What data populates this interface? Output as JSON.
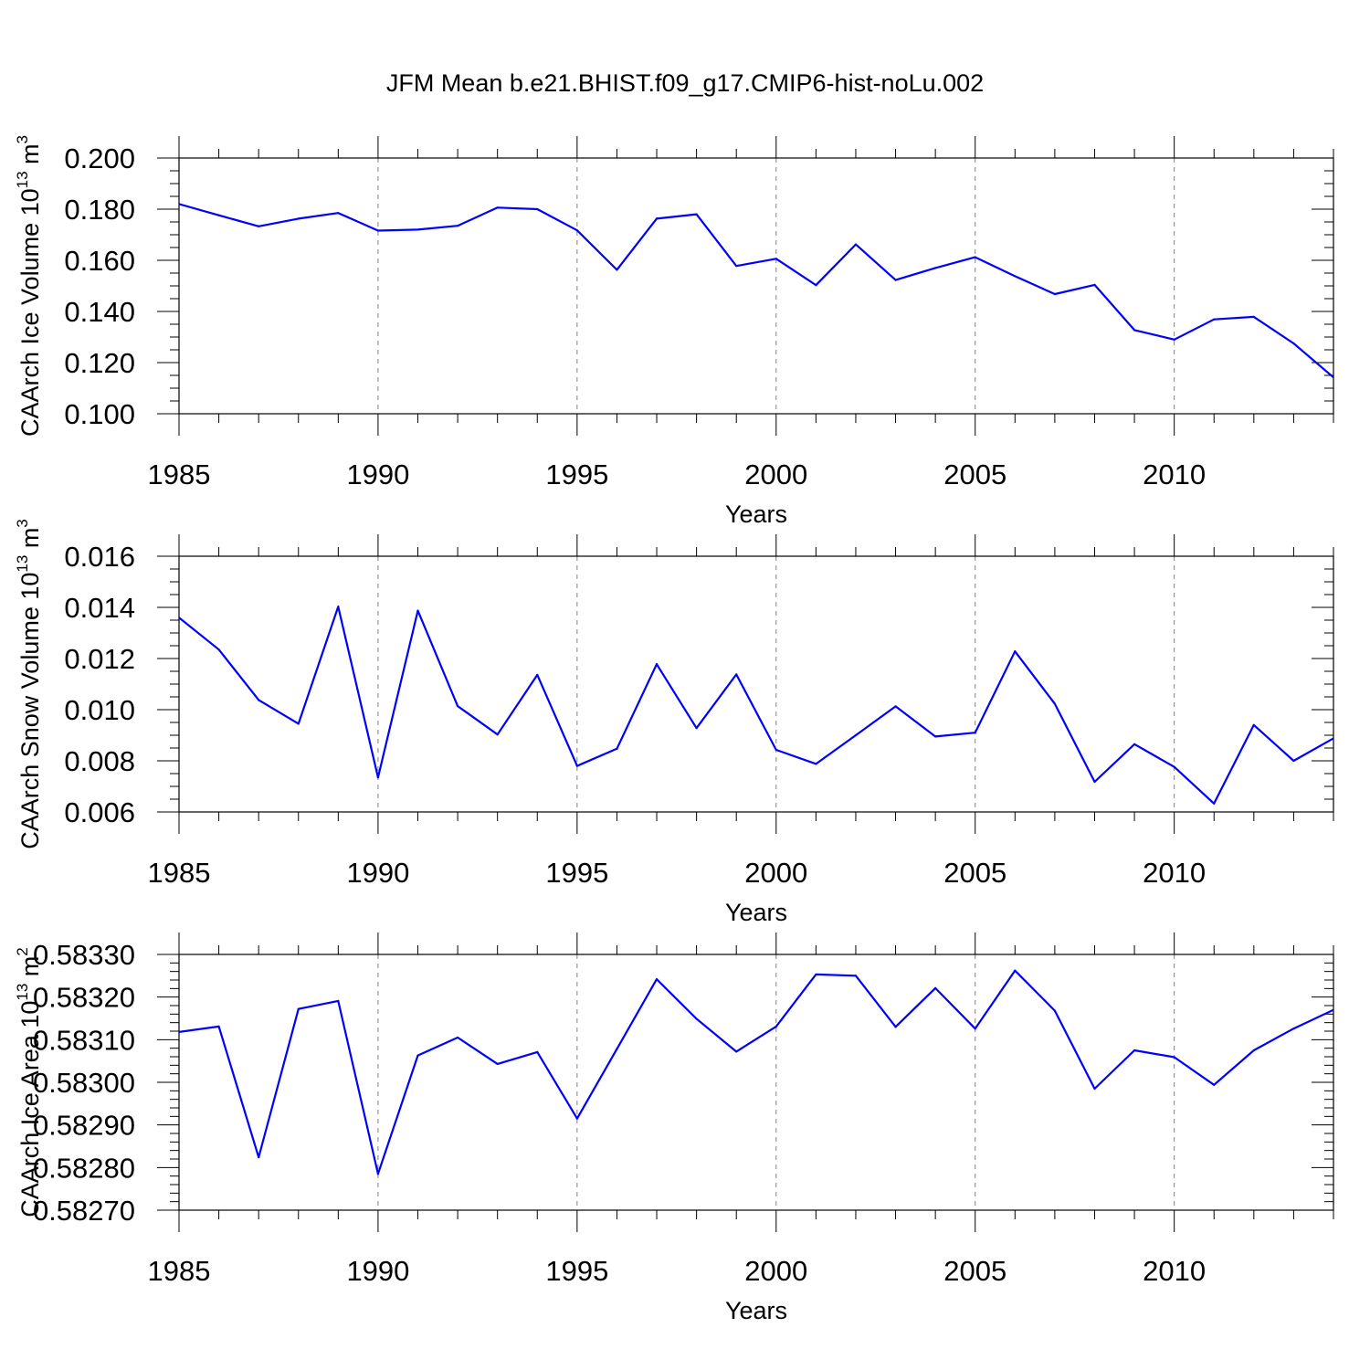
{
  "figure": {
    "title": "JFM Mean b.e21.BHIST.f09_g17.CMIP6-hist-noLu.002"
  },
  "colors": {
    "line": "#0000ff",
    "axis": "#000000",
    "grid": "#808080",
    "background": "#ffffff"
  },
  "chart_data": [
    {
      "type": "line",
      "name": "ice-volume",
      "xlabel": "Years",
      "ylabel_main": "CAArch Ice Volume 10",
      "ylabel_exp": "13",
      "ylabel_unit": " m",
      "ylabel_unit_exp": "3",
      "xlim": [
        1985,
        2014
      ],
      "ylim": [
        0.1,
        0.2
      ],
      "y_major_step": 0.02,
      "y_minor_step": 0.005,
      "y_tick_labels": [
        "0.100",
        "0.120",
        "0.140",
        "0.160",
        "0.180",
        "0.200"
      ],
      "x_tick_labels": [
        "1985",
        "1990",
        "1995",
        "2000",
        "2005",
        "2010"
      ],
      "x_minor_step": 1,
      "gridlines_x": [
        1990,
        1995,
        2000,
        2005,
        2010
      ],
      "series": [
        {
          "name": "CAArch Ice Volume",
          "x": [
            1985,
            1986,
            1987,
            1988,
            1989,
            1990,
            1991,
            1992,
            1993,
            1994,
            1995,
            1996,
            1997,
            1998,
            1999,
            2000,
            2001,
            2002,
            2003,
            2004,
            2005,
            2006,
            2007,
            2008,
            2009,
            2010,
            2011,
            2012,
            2013,
            2014
          ],
          "values": [
            0.182,
            0.1776,
            0.1733,
            0.1763,
            0.1785,
            0.1716,
            0.172,
            0.1735,
            0.1806,
            0.18,
            0.1717,
            0.1563,
            0.1763,
            0.178,
            0.1578,
            0.1606,
            0.1503,
            0.1662,
            0.1523,
            0.157,
            0.1612,
            0.1538,
            0.1468,
            0.1504,
            0.1327,
            0.129,
            0.1369,
            0.1379,
            0.1275,
            0.1142
          ]
        }
      ]
    },
    {
      "type": "line",
      "name": "snow-volume",
      "xlabel": "Years",
      "ylabel_main": "CAArch Snow Volume 10",
      "ylabel_exp": "13",
      "ylabel_unit": " m",
      "ylabel_unit_exp": "3",
      "xlim": [
        1985,
        2014
      ],
      "ylim": [
        0.006,
        0.016
      ],
      "y_major_step": 0.002,
      "y_minor_step": 0.0005,
      "y_tick_labels": [
        "0.006",
        "0.008",
        "0.010",
        "0.012",
        "0.014",
        "0.016"
      ],
      "x_tick_labels": [
        "1985",
        "1990",
        "1995",
        "2000",
        "2005",
        "2010"
      ],
      "x_minor_step": 1,
      "gridlines_x": [
        1990,
        1995,
        2000,
        2005,
        2010
      ],
      "series": [
        {
          "name": "CAArch Snow Volume",
          "x": [
            1985,
            1986,
            1987,
            1988,
            1989,
            1990,
            1991,
            1992,
            1993,
            1994,
            1995,
            1996,
            1997,
            1998,
            1999,
            2000,
            2001,
            2002,
            2003,
            2004,
            2005,
            2006,
            2007,
            2008,
            2009,
            2010,
            2011,
            2012,
            2013,
            2014
          ],
          "values": [
            0.0136,
            0.01235,
            0.01038,
            0.00945,
            0.01403,
            0.00735,
            0.01387,
            0.01014,
            0.00903,
            0.01136,
            0.0078,
            0.00847,
            0.01178,
            0.00928,
            0.01138,
            0.00843,
            0.00788,
            0.009,
            0.01013,
            0.00895,
            0.0091,
            0.01228,
            0.01023,
            0.00718,
            0.00865,
            0.00776,
            0.00633,
            0.0094,
            0.008,
            0.00888
          ]
        }
      ]
    },
    {
      "type": "line",
      "name": "ice-area",
      "xlabel": "Years",
      "ylabel_main": "CAArch Ice Area 10",
      "ylabel_exp": "13",
      "ylabel_unit": " m",
      "ylabel_unit_exp": "2",
      "xlim": [
        1985,
        2014
      ],
      "ylim": [
        0.5827,
        0.5833
      ],
      "y_major_step": 0.0001,
      "y_minor_step": 2e-05,
      "y_tick_labels": [
        "0.58270",
        "0.58280",
        "0.58290",
        "0.58300",
        "0.58310",
        "0.58320",
        "0.58330"
      ],
      "x_tick_labels": [
        "1985",
        "1990",
        "1995",
        "2000",
        "2005",
        "2010"
      ],
      "x_minor_step": 1,
      "gridlines_x": [
        1990,
        1995,
        2000,
        2005,
        2010
      ],
      "series": [
        {
          "name": "CAArch Ice Area",
          "x": [
            1985,
            1986,
            1987,
            1988,
            1989,
            1990,
            1991,
            1992,
            1993,
            1994,
            1995,
            1996,
            1997,
            1998,
            1999,
            2000,
            2001,
            2002,
            2003,
            2004,
            2005,
            2006,
            2007,
            2008,
            2009,
            2010,
            2011,
            2012,
            2013,
            2014
          ],
          "values": [
            0.583118,
            0.583131,
            0.582824,
            0.583172,
            0.583191,
            0.582785,
            0.583063,
            0.583105,
            0.583043,
            0.583071,
            0.582915,
            0.583078,
            0.583242,
            0.583149,
            0.583072,
            0.583131,
            0.583253,
            0.58325,
            0.58313,
            0.583221,
            0.583126,
            0.583262,
            0.583168,
            0.582985,
            0.583075,
            0.583059,
            0.582994,
            0.583075,
            0.583126,
            0.58317
          ]
        }
      ]
    }
  ]
}
